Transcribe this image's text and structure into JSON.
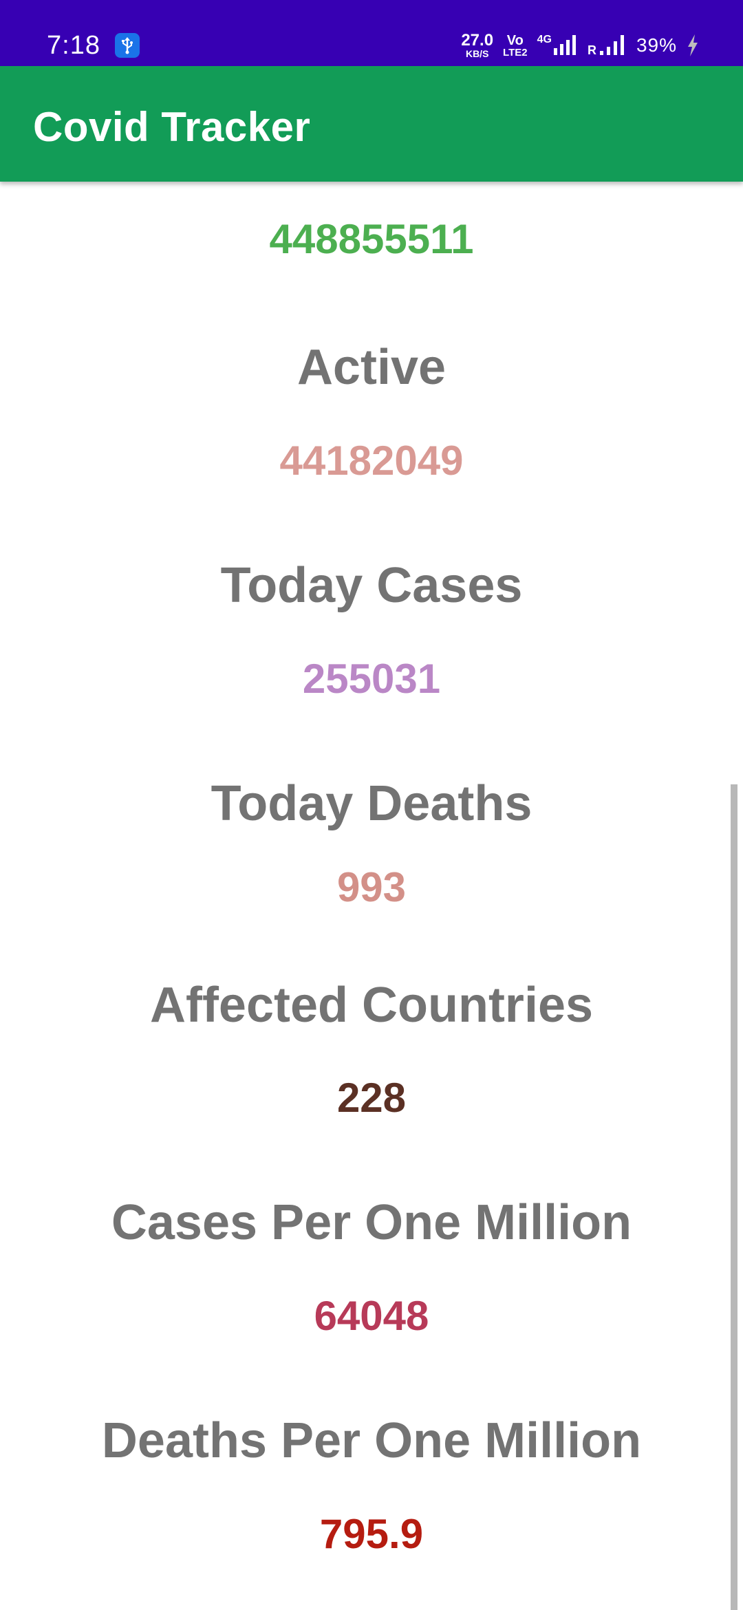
{
  "status_bar": {
    "time": "7:18",
    "usb_icon": "usb-icon",
    "net_speed_value": "27.0",
    "net_speed_unit": "KB/S",
    "volte_top": "Vo",
    "volte_bottom": "LTE2",
    "network_type": "4G",
    "roaming_indicator": "R",
    "battery": "39%",
    "charging_icon": "bolt-icon"
  },
  "app_bar": {
    "title": "Covid Tracker"
  },
  "stats": [
    {
      "label": "",
      "value": "448855511",
      "value_color": "#4caf50"
    },
    {
      "label": "Active",
      "value": "44182049",
      "value_color": "#d99a94"
    },
    {
      "label": "Today Cases",
      "value": "255031",
      "value_color": "#ba87c6"
    },
    {
      "label": "Today Deaths",
      "value": "993",
      "value_color": "#d39088"
    },
    {
      "label": "Affected Countries",
      "value": "228",
      "value_color": "#5b3024"
    },
    {
      "label": "Cases Per One Million",
      "value": "64048",
      "value_color": "#b73a58"
    },
    {
      "label": "Deaths Per One Million",
      "value": "795.9",
      "value_color": "#b51c10"
    }
  ],
  "colors": {
    "status_bar_bg": "#3700b3",
    "app_bar_bg": "#129c57",
    "heading_text": "#737373"
  }
}
